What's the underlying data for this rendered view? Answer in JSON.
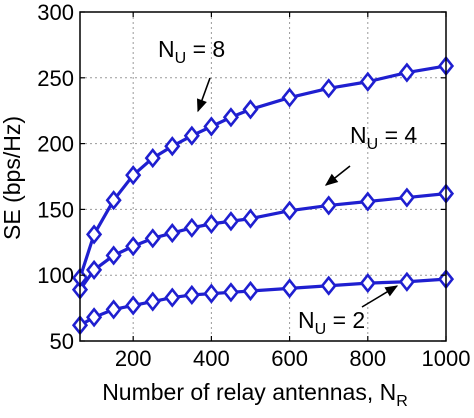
{
  "chart_data": {
    "type": "line",
    "title": "",
    "xlabel": "Number of relay antennas, N",
    "xlabel_sub": "R",
    "ylabel": "SE (bps/Hz)",
    "xlim": [
      64,
      1000
    ],
    "ylim": [
      50,
      300
    ],
    "xticks": [
      200,
      400,
      600,
      800,
      1000
    ],
    "yticks": [
      50,
      100,
      150,
      200,
      250,
      300
    ],
    "grid": true,
    "line_color": "#1f1fd0",
    "marker": "diamond",
    "x": [
      64,
      100,
      150,
      200,
      250,
      300,
      350,
      400,
      450,
      500,
      600,
      700,
      800,
      900,
      1000
    ],
    "series": [
      {
        "values": [
          62,
          68,
          74,
          77,
          80,
          83,
          85,
          86,
          87,
          88,
          90,
          92,
          94,
          95,
          97
        ]
      },
      {
        "values": [
          89,
          104,
          115,
          122,
          128,
          132,
          136,
          139,
          141,
          143,
          149,
          153,
          156,
          159,
          162
        ]
      },
      {
        "values": [
          98,
          131,
          157,
          176,
          189,
          198,
          206,
          213,
          220,
          226,
          235,
          242,
          247,
          254,
          259
        ]
      }
    ],
    "annotations": [
      {
        "main": "N",
        "sub": "U",
        "rest": " = 8"
      },
      {
        "main": "N",
        "sub": "U",
        "rest": " = 4"
      },
      {
        "main": "N",
        "sub": "U",
        "rest": " = 2"
      }
    ]
  }
}
